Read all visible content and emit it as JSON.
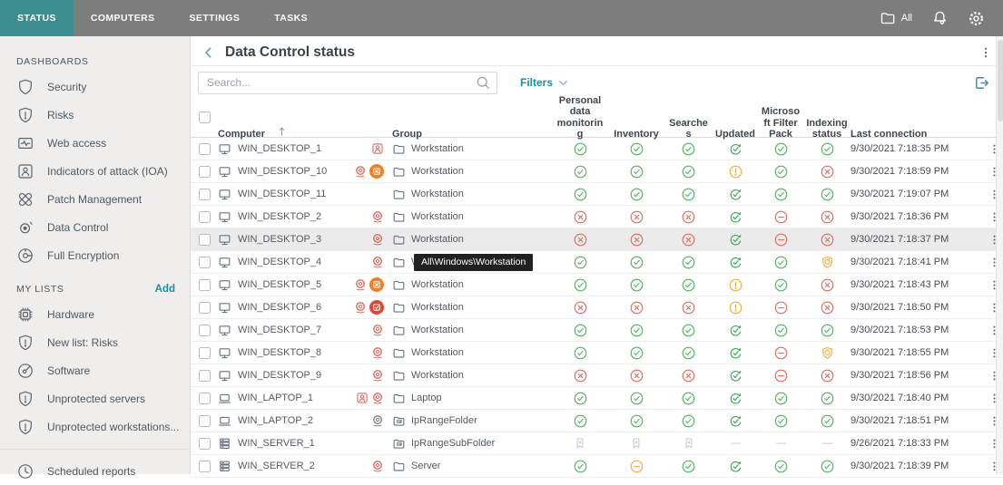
{
  "topbar": {
    "tabs": [
      {
        "label": "STATUS",
        "active": true
      },
      {
        "label": "COMPUTERS",
        "active": false
      },
      {
        "label": "SETTINGS",
        "active": false
      },
      {
        "label": "TASKS",
        "active": false
      }
    ],
    "scope_label": "All"
  },
  "sidebar": {
    "sections": [
      {
        "title": "DASHBOARDS",
        "action": null,
        "items": [
          {
            "icon": "shield",
            "label": "Security"
          },
          {
            "icon": "shield-alert",
            "label": "Risks"
          },
          {
            "icon": "web-access",
            "label": "Web access"
          },
          {
            "icon": "ioa",
            "label": "Indicators of attack (IOA)"
          },
          {
            "icon": "patch",
            "label": "Patch Management"
          },
          {
            "icon": "data-control",
            "label": "Data Control"
          },
          {
            "icon": "encryption",
            "label": "Full Encryption"
          }
        ]
      },
      {
        "title": "MY LISTS",
        "action": "Add",
        "items": [
          {
            "icon": "hardware",
            "label": "Hardware"
          },
          {
            "icon": "shield-alert",
            "label": "New list: Risks"
          },
          {
            "icon": "software",
            "label": "Software"
          },
          {
            "icon": "shield-alert",
            "label": "Unprotected servers"
          },
          {
            "icon": "shield-alert",
            "label": "Unprotected workstations..."
          }
        ]
      },
      {
        "title": null,
        "action": null,
        "divider": true,
        "items": [
          {
            "icon": "clock",
            "label": "Scheduled reports"
          }
        ]
      }
    ]
  },
  "main": {
    "title": "Data Control status",
    "search_placeholder": "Search...",
    "filters_label": "Filters",
    "tooltip": "All\\Windows\\Workstation",
    "table": {
      "columns": [
        "Computer",
        "Group",
        "Personal data monitoring",
        "Inventory",
        "Searches",
        "Updated",
        "Microsoft Filter Pack",
        "Indexing status",
        "Last connection"
      ],
      "rows": [
        {
          "name": "WIN_DESKTOP_1",
          "device": "desktop",
          "badges": [
            "ioa"
          ],
          "group_icon": "folder",
          "group": "Workstation",
          "statuses": [
            "ok",
            "ok",
            "ok",
            "sync",
            "ok",
            "ok"
          ],
          "last": "9/30/2021 7:18:35 PM"
        },
        {
          "name": "WIN_DESKTOP_10",
          "device": "desktop",
          "badges": [
            "gear",
            "isolated"
          ],
          "group_icon": "folder",
          "group": "Workstation",
          "statuses": [
            "ok",
            "ok",
            "ok",
            "warn",
            "ok",
            "error"
          ],
          "last": "9/30/2021 7:18:59 PM"
        },
        {
          "name": "WIN_DESKTOP_11",
          "device": "desktop",
          "badges": [],
          "group_icon": "folder",
          "group": "Workstation",
          "statuses": [
            "ok",
            "ok",
            "ok",
            "sync",
            "ok",
            "ok"
          ],
          "last": "9/30/2021 7:19:07 PM"
        },
        {
          "name": "WIN_DESKTOP_2",
          "device": "desktop",
          "badges": [
            "gear"
          ],
          "group_icon": "folder",
          "group": "Workstation",
          "statuses": [
            "error",
            "error",
            "error",
            "sync",
            "minus",
            "error"
          ],
          "last": "9/30/2021 7:18:36 PM"
        },
        {
          "name": "WIN_DESKTOP_3",
          "device": "desktop",
          "badges": [
            "gear"
          ],
          "group_icon": "folder",
          "group": "Workstation",
          "statuses": [
            "error",
            "error",
            "error",
            "sync",
            "minus",
            "error"
          ],
          "last": "9/30/2021 7:18:37 PM",
          "highlight": true
        },
        {
          "name": "WIN_DESKTOP_4",
          "device": "desktop",
          "badges": [
            "gear"
          ],
          "group_icon": "folder",
          "group": "Workstation",
          "statuses": [
            "ok",
            "ok",
            "ok",
            "sync",
            "ok",
            "progress"
          ],
          "last": "9/30/2021 7:18:41 PM",
          "tooltip": true
        },
        {
          "name": "WIN_DESKTOP_5",
          "device": "desktop",
          "badges": [
            "gear",
            "isolated"
          ],
          "group_icon": "folder",
          "group": "Workstation",
          "statuses": [
            "ok",
            "ok",
            "ok",
            "warn",
            "ok",
            "error"
          ],
          "last": "9/30/2021 7:18:43 PM"
        },
        {
          "name": "WIN_DESKTOP_6",
          "device": "desktop",
          "badges": [
            "gear",
            "contained"
          ],
          "group_icon": "folder",
          "group": "Workstation",
          "statuses": [
            "error",
            "error",
            "error",
            "warn",
            "minus",
            "error"
          ],
          "last": "9/30/2021 7:18:50 PM"
        },
        {
          "name": "WIN_DESKTOP_7",
          "device": "desktop",
          "badges": [
            "gear"
          ],
          "group_icon": "folder",
          "group": "Workstation",
          "statuses": [
            "ok",
            "ok",
            "ok",
            "sync",
            "ok",
            "ok"
          ],
          "last": "9/30/2021 7:18:53 PM"
        },
        {
          "name": "WIN_DESKTOP_8",
          "device": "desktop",
          "badges": [
            "gear"
          ],
          "group_icon": "folder",
          "group": "Workstation",
          "statuses": [
            "ok",
            "ok",
            "ok",
            "sync",
            "minus",
            "progress"
          ],
          "last": "9/30/2021 7:18:55 PM"
        },
        {
          "name": "WIN_DESKTOP_9",
          "device": "desktop",
          "badges": [
            "gear"
          ],
          "group_icon": "folder",
          "group": "Workstation",
          "statuses": [
            "error",
            "error",
            "error",
            "sync",
            "minus",
            "error"
          ],
          "last": "9/30/2021 7:18:56 PM"
        },
        {
          "name": "WIN_LAPTOP_1",
          "device": "laptop",
          "badges": [
            "ioa",
            "gear"
          ],
          "group_icon": "folder",
          "group": "Laptop",
          "statuses": [
            "ok",
            "ok",
            "ok",
            "sync",
            "ok",
            "ok"
          ],
          "last": "9/30/2021 7:18:40 PM"
        },
        {
          "name": "WIN_LAPTOP_2",
          "device": "laptop",
          "badges": [
            "gear-gray"
          ],
          "group_icon": "ip-folder",
          "group": "IpRangeFolder",
          "statuses": [
            "ok",
            "ok",
            "ok",
            "sync",
            "ok",
            "ok"
          ],
          "last": "9/30/2021 7:18:51 PM"
        },
        {
          "name": "WIN_SERVER_1",
          "device": "server",
          "badges": [],
          "group_icon": "ip-folder",
          "group": "IpRangeSubFolder",
          "statuses": [
            "na",
            "na",
            "na",
            "dash",
            "dash",
            "dash"
          ],
          "last": "9/26/2021 7:18:33 PM"
        },
        {
          "name": "WIN_SERVER_2",
          "device": "server",
          "badges": [
            "gear"
          ],
          "group_icon": "folder",
          "group": "Server",
          "statuses": [
            "ok",
            "minus-orange",
            "ok",
            "sync",
            "ok",
            "ok"
          ],
          "last": "9/30/2021 7:18:39 PM"
        }
      ]
    }
  }
}
